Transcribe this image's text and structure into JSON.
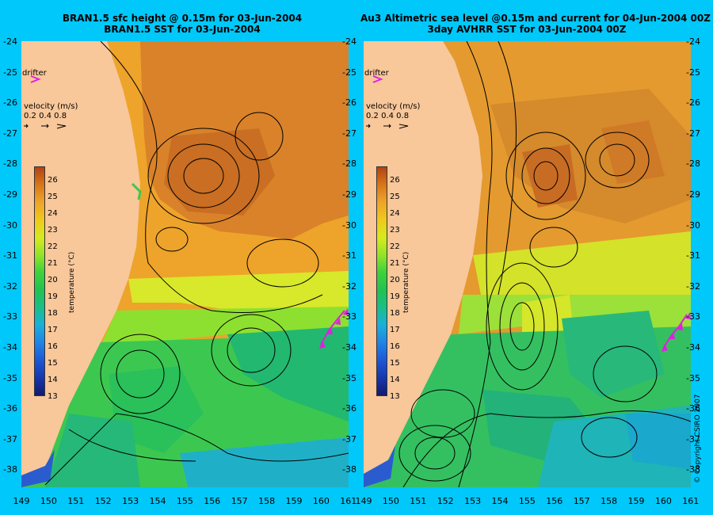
{
  "left_panel": {
    "title_line1": "BRAN1.5 sfc height @ 0.15m for 03-Jun-2004",
    "title_line2": "BRAN1.5 SST for 03-Jun-2004"
  },
  "right_panel": {
    "title_line1": "Au3 Altimetric sea level  @0.15m and current for 04-Jun-2004 00Z",
    "title_line2": "3day AVHRR SST for 03-Jun-2004 00Z"
  },
  "legend": {
    "drifter_label": "drifter",
    "velocity_title": "velocity (m/s)",
    "velocity_values": "0.2 0.4 0.8",
    "colorbar_title": "temperature (°C)",
    "colorbar_ticks": [
      "26",
      "25",
      "24",
      "23",
      "22",
      "21",
      "20",
      "19",
      "18",
      "17",
      "16",
      "15",
      "14",
      "13"
    ]
  },
  "axes": {
    "latitude_labels": [
      "-24",
      "-25",
      "-26",
      "-27",
      "-28",
      "-29",
      "-30",
      "-31",
      "-32",
      "-33",
      "-34",
      "-35",
      "-36",
      "-37",
      "-38"
    ],
    "longitude_labels": [
      "149",
      "150",
      "151",
      "152",
      "153",
      "154",
      "155",
      "156",
      "157",
      "158",
      "159",
      "160",
      "161"
    ]
  },
  "copyright": "© Copyright CSIRO 2007",
  "colors": {
    "background": "#00c8fa",
    "land": "#f8c79a",
    "drifter": "#e020e0"
  }
}
